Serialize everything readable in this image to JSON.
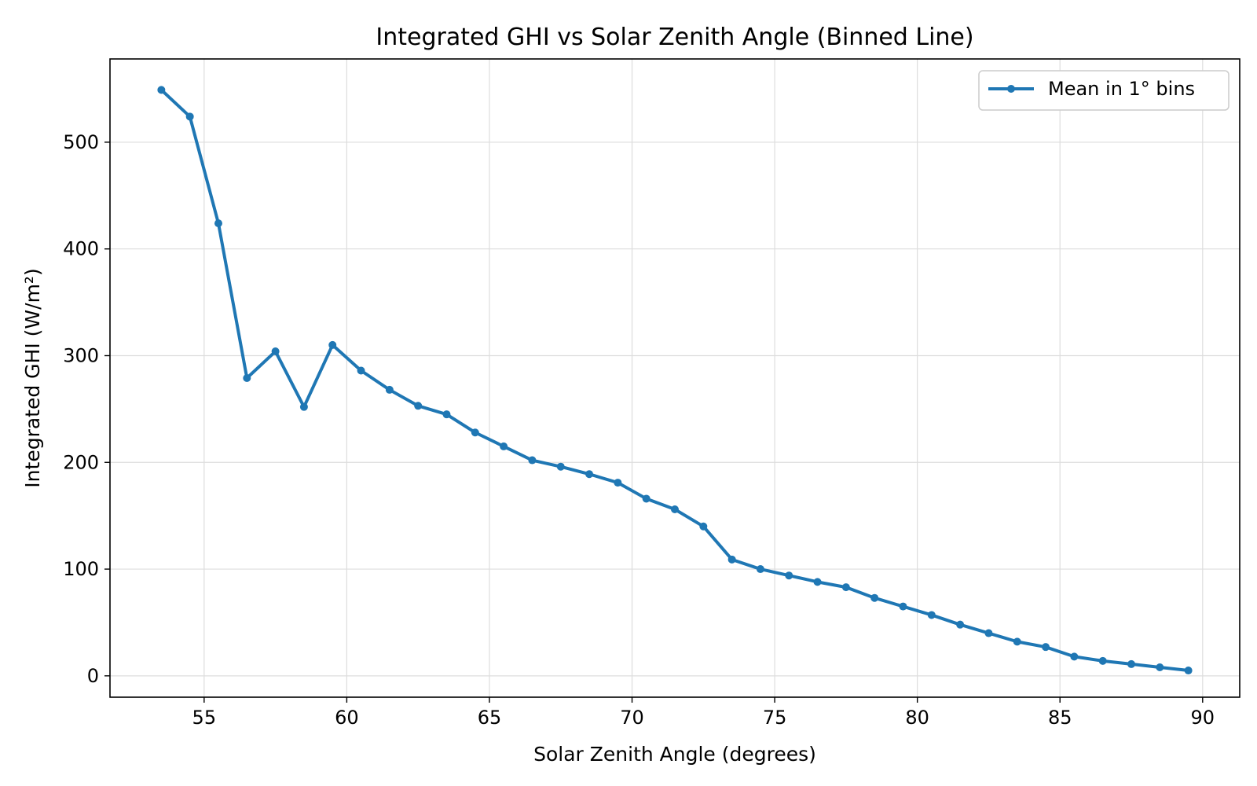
{
  "chart_data": {
    "type": "line",
    "title": "Integrated GHI vs Solar Zenith Angle (Binned Line)",
    "xlabel": "Solar Zenith Angle (degrees)",
    "ylabel": "Integrated GHI (W/m²)",
    "xlim": [
      51.7,
      91.3
    ],
    "ylim": [
      -20,
      578
    ],
    "xticks": [
      55,
      60,
      65,
      70,
      75,
      80,
      85,
      90
    ],
    "yticks": [
      0,
      100,
      200,
      300,
      400,
      500
    ],
    "grid": true,
    "legend_position": "top-right",
    "series": [
      {
        "name": "Mean in 1° bins",
        "color": "#1f77b4",
        "x": [
          53.5,
          54.5,
          55.5,
          56.5,
          57.5,
          58.5,
          59.5,
          60.5,
          61.5,
          62.5,
          63.5,
          64.5,
          65.5,
          66.5,
          67.5,
          68.5,
          69.5,
          70.5,
          71.5,
          72.5,
          73.5,
          74.5,
          75.5,
          76.5,
          77.5,
          78.5,
          79.5,
          80.5,
          81.5,
          82.5,
          83.5,
          84.5,
          85.5,
          86.5,
          87.5,
          88.5,
          89.5
        ],
        "y": [
          549,
          524,
          424,
          279,
          304,
          252,
          310,
          286,
          268,
          253,
          245,
          228,
          215,
          202,
          196,
          189,
          181,
          166,
          156,
          140,
          109,
          100,
          94,
          88,
          83,
          73,
          65,
          57,
          48,
          40,
          32,
          27,
          18,
          14,
          11,
          8,
          5
        ]
      }
    ]
  }
}
